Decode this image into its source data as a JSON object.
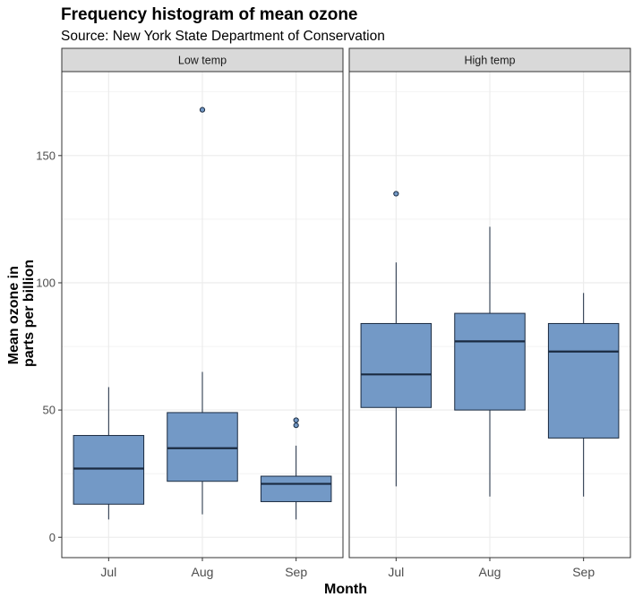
{
  "chart_data": {
    "type": "box",
    "title": "Frequency histogram of mean ozone",
    "subtitle": "Source: New York State Department of Conservation",
    "xlabel": "Month",
    "ylabel": [
      "Mean ozone in",
      "parts per billion"
    ],
    "ylim": [
      -8,
      183
    ],
    "yticks": [
      0,
      50,
      100,
      150
    ],
    "categories": [
      "Jul",
      "Aug",
      "Sep"
    ],
    "facets": [
      {
        "label": "Low temp",
        "boxes": [
          {
            "category": "Jul",
            "min": 7,
            "q1": 13,
            "median": 27,
            "q3": 40,
            "max": 59,
            "outliers": []
          },
          {
            "category": "Aug",
            "min": 9,
            "q1": 22,
            "median": 35,
            "q3": 49,
            "max": 65,
            "outliers": [
              168
            ]
          },
          {
            "category": "Sep",
            "min": 7,
            "q1": 14,
            "median": 21,
            "q3": 24,
            "max": 36,
            "outliers": [
              44,
              46
            ]
          }
        ]
      },
      {
        "label": "High temp",
        "boxes": [
          {
            "category": "Jul",
            "min": 20,
            "q1": 51,
            "median": 64,
            "q3": 84,
            "max": 108,
            "outliers": [
              135
            ]
          },
          {
            "category": "Aug",
            "min": 16,
            "q1": 50,
            "median": 77,
            "q3": 88,
            "max": 122,
            "outliers": []
          },
          {
            "category": "Sep",
            "min": 16,
            "q1": 39,
            "median": 73,
            "q3": 84,
            "max": 96,
            "outliers": []
          }
        ]
      }
    ],
    "grid": true,
    "colors": {
      "box_fill": "#7399c6",
      "box_line": "#1a2a40",
      "grid": "#ebebeb",
      "strip_fill": "#d9d9d9",
      "panel_border": "#333333"
    }
  }
}
